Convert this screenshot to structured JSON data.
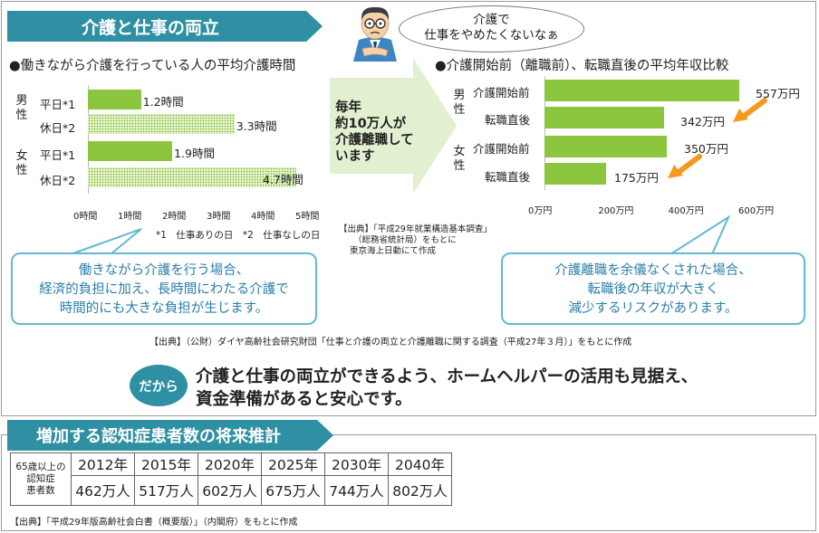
{
  "main_title": "介護と仕事の両立",
  "bubble": {
    "line1": "介護で",
    "line2": "仕事をやめたくないなぁ"
  },
  "left_chart": {
    "heading": "●働きながら介護を行っている人の平均介護時間",
    "male_label": "男性",
    "female_label": "女性",
    "weekday_label": "平日*1",
    "holiday_label": "休日*2",
    "values": [
      "1.2時間",
      "3.3時間",
      "1.9時間",
      "4.7時間"
    ],
    "ticks": [
      "0時間",
      "1時間",
      "2時間",
      "3時間",
      "4時間",
      "5時間"
    ],
    "note": "*1　仕事ありの日　*2　仕事なしの日"
  },
  "chart_data": [
    {
      "type": "bar",
      "title": "●働きながら介護を行っている人の平均介護時間",
      "orientation": "horizontal",
      "categories": [
        "男性 平日*1",
        "男性 休日*2",
        "女性 平日*1",
        "女性 休日*2"
      ],
      "values": [
        1.2,
        3.3,
        1.9,
        4.7
      ],
      "unit": "時間",
      "xlim": [
        0,
        5
      ],
      "ticks": [
        "0時間",
        "1時間",
        "2時間",
        "3時間",
        "4時間",
        "5時間"
      ]
    },
    {
      "type": "bar",
      "title": "●介護開始前（離職前）、転職直後の平均年収比較",
      "orientation": "horizontal",
      "categories": [
        "男性 介護開始前",
        "男性 転職直後",
        "女性 介護開始前",
        "女性 転職直後"
      ],
      "values": [
        557,
        342,
        350,
        175
      ],
      "unit": "万円",
      "xlim": [
        0,
        600
      ],
      "ticks": [
        "0万円",
        "200万円",
        "400万円",
        "600万円"
      ]
    }
  ],
  "center": {
    "arrow_text": [
      "毎年",
      "約10万人が",
      "介護離職して",
      "います"
    ],
    "source": [
      "【出典】「平成29年就業構造基本調査」",
      "（総務省統計局）をもとに",
      "東京海上日動にて作成"
    ]
  },
  "right_chart": {
    "heading": "●介護開始前（離職前）、転職直後の平均年収比較",
    "male_label": "男性",
    "female_label": "女性",
    "before_label": "介護開始前",
    "after_label": "転職直後",
    "values": [
      "557万円",
      "342万円",
      "350万円",
      "175万円"
    ],
    "ticks": [
      "0万円",
      "200万円",
      "400万円",
      "600万円"
    ]
  },
  "callout_left": [
    "働きながら介護を行う場合、",
    "経済的負担に加え、長時間にわたる介護で",
    "時間的にも大きな負担が生じます。"
  ],
  "callout_right": [
    "介護離職を余儀なくされた場合、",
    "転職後の年収が大きく",
    "減少するリスクがあります。"
  ],
  "source_main": "【出典】（公財）ダイヤ高齢社会研究財団「仕事と介護の両立と介護離職に関する調査（平成27年３月）」をもとに作成",
  "dakara": "だから",
  "conclusion": [
    "介護と仕事の両立ができるよう、ホームヘルパーの活用も見据え、",
    "資金準備があると安心です。"
  ],
  "dementia": {
    "title": "増加する認知症患者数の将来推計",
    "row_header": [
      "65歳以上の",
      "認知症",
      "患者数"
    ],
    "years": [
      "2012年",
      "2015年",
      "2020年",
      "2025年",
      "2030年",
      "2040年"
    ],
    "values": [
      "462万人",
      "517万人",
      "602万人",
      "675万人",
      "744万人",
      "802万人"
    ],
    "source": "【出典】「平成29年版高齢社会白書（概要版）」（内閣府）をもとに作成"
  },
  "colors": {
    "banner": "#2f8fa3",
    "bar": "#8cc63f",
    "arrow": "#e2efd0",
    "orange": "#f39a1e",
    "callout_border": "#60b9d5",
    "callout_text": "#2a7fa9"
  }
}
